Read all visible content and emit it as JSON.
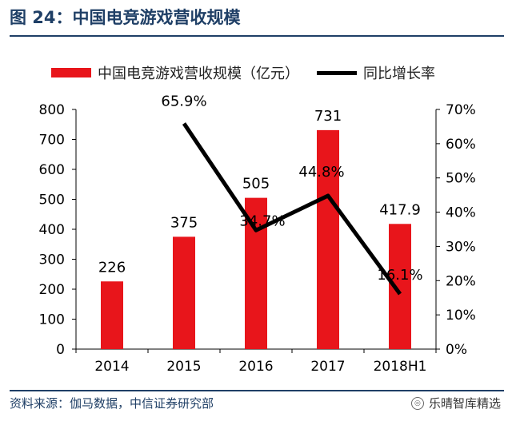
{
  "header": {
    "title": "图 24：中国电竞游戏营收规模"
  },
  "footer": {
    "source": "资料来源：伽马数据，中信证券研究部",
    "watermark": "乐晴智库精选"
  },
  "colors": {
    "bar": "#e8151b",
    "line": "#000000",
    "title": "#1f3f66"
  },
  "chart_data": {
    "type": "bar",
    "categories": [
      "2014",
      "2015",
      "2016",
      "2017",
      "2018H1"
    ],
    "series": [
      {
        "name": "中国电竞游戏营收规模（亿元）",
        "type": "bar",
        "axis": "left",
        "values": [
          226,
          375,
          505,
          731,
          417.9
        ],
        "labels": [
          "226",
          "375",
          "505",
          "731",
          "417.9"
        ]
      },
      {
        "name": "同比增长率",
        "type": "line",
        "axis": "right",
        "values": [
          null,
          65.9,
          34.7,
          44.8,
          16.1
        ],
        "labels": [
          "",
          "65.9%",
          "34.7%",
          "44.8%",
          "16.1%"
        ]
      }
    ],
    "y_left": {
      "min": 0,
      "max": 800,
      "ticks": [
        "0",
        "100",
        "200",
        "300",
        "400",
        "500",
        "600",
        "700",
        "800"
      ]
    },
    "y_right": {
      "min": 0,
      "max": 70,
      "ticks": [
        "0%",
        "10%",
        "20%",
        "30%",
        "40%",
        "50%",
        "60%",
        "70%"
      ]
    },
    "legend_position": "top",
    "grid": false
  }
}
